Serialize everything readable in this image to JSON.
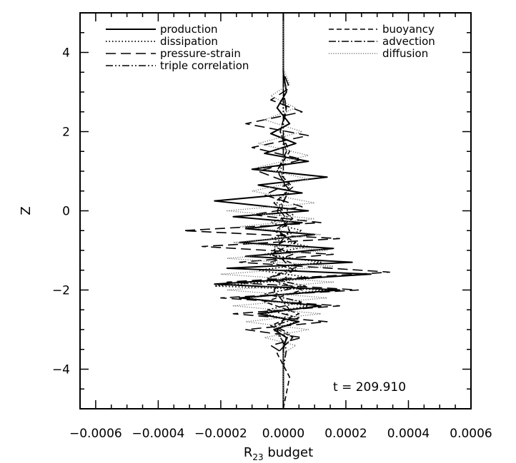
{
  "chart_data": {
    "type": "line",
    "title": "",
    "xlabel": "R",
    "xlabel_sub": "23",
    "xlabel_suffix": " budget",
    "ylabel": "Z",
    "xlim": [
      -0.00065,
      0.0006
    ],
    "ylim": [
      -5,
      5
    ],
    "x_ticks": [
      -0.0006,
      -0.0004,
      -0.0002,
      0.0,
      0.0002,
      0.0004,
      0.0006
    ],
    "x_tick_labels": [
      "−0.0006",
      "−0.0004",
      "−0.0002",
      "0.0000",
      "0.0002",
      "0.0004",
      "0.0006"
    ],
    "y_ticks": [
      -4,
      -2,
      0,
      2,
      4
    ],
    "y_tick_labels": [
      "−4",
      "−2",
      "0",
      "2",
      "4"
    ],
    "grid": false,
    "legend_placement": "top",
    "annotation": "t = 209.910",
    "series": [
      {
        "name": "production",
        "style": "solid",
        "color": "#000000",
        "points": [
          [
            0.0,
            -5.0
          ],
          [
            0.0,
            -3.5
          ],
          [
            1e-05,
            -3.2
          ],
          [
            -3e-05,
            -3.0
          ],
          [
            5e-05,
            -2.8
          ],
          [
            -8e-05,
            -2.6
          ],
          [
            0.00012,
            -2.4
          ],
          [
            -0.00014,
            -2.2
          ],
          [
            0.00018,
            -2.0
          ],
          [
            -0.00022,
            -1.85
          ],
          [
            0.00028,
            -1.6
          ],
          [
            -0.00018,
            -1.45
          ],
          [
            0.00022,
            -1.3
          ],
          [
            -0.00012,
            -1.15
          ],
          [
            0.00016,
            -0.95
          ],
          [
            -0.00014,
            -0.8
          ],
          [
            0.0001,
            -0.6
          ],
          [
            -0.00012,
            -0.45
          ],
          [
            6e-05,
            -0.3
          ],
          [
            -0.00016,
            -0.15
          ],
          [
            8e-05,
            0.0
          ],
          [
            -0.00022,
            0.25
          ],
          [
            6e-05,
            0.45
          ],
          [
            -8e-05,
            0.65
          ],
          [
            0.00014,
            0.85
          ],
          [
            -0.0001,
            1.05
          ],
          [
            8e-05,
            1.25
          ],
          [
            -6e-05,
            1.45
          ],
          [
            4e-05,
            1.7
          ],
          [
            -4e-05,
            1.95
          ],
          [
            2e-05,
            2.2
          ],
          [
            -2e-05,
            2.6
          ],
          [
            1e-05,
            3.0
          ],
          [
            0.0,
            3.5
          ],
          [
            0.0,
            5.0
          ]
        ]
      },
      {
        "name": "dissipation",
        "style": "dotted",
        "color": "#000000",
        "points": [
          [
            0.0,
            -5.0
          ],
          [
            0.0,
            -3.3
          ],
          [
            -3e-05,
            -3.0
          ],
          [
            4e-05,
            -2.8
          ],
          [
            -6e-05,
            -2.6
          ],
          [
            8e-05,
            -2.4
          ],
          [
            -0.00012,
            -2.2
          ],
          [
            0.00014,
            -2.0
          ],
          [
            -0.00022,
            -1.9
          ],
          [
            0.0001,
            -1.7
          ],
          [
            -8e-05,
            -1.5
          ],
          [
            0.00012,
            -1.3
          ],
          [
            -6e-05,
            -1.1
          ],
          [
            8e-05,
            -0.9
          ],
          [
            -4e-05,
            -0.7
          ],
          [
            6e-05,
            -0.5
          ],
          [
            -4e-05,
            -0.3
          ],
          [
            3e-05,
            -0.1
          ],
          [
            -2e-05,
            0.2
          ],
          [
            2e-05,
            0.6
          ],
          [
            -1e-05,
            1.0
          ],
          [
            1e-05,
            1.5
          ],
          [
            0.0,
            2.0
          ],
          [
            0.0,
            5.0
          ]
        ]
      },
      {
        "name": "pressure-strain",
        "style": "longdash",
        "color": "#000000",
        "points": [
          [
            0.0,
            -5.0
          ],
          [
            0.0,
            -3.6
          ],
          [
            -4e-05,
            -3.4
          ],
          [
            6e-05,
            -3.2
          ],
          [
            -0.00012,
            -3.0
          ],
          [
            0.00014,
            -2.8
          ],
          [
            -0.00016,
            -2.6
          ],
          [
            0.00018,
            -2.4
          ],
          [
            -0.0002,
            -2.2
          ],
          [
            0.00024,
            -2.0
          ],
          [
            -0.00018,
            -1.8
          ],
          [
            0.00034,
            -1.55
          ],
          [
            -0.00014,
            -1.3
          ],
          [
            0.00016,
            -1.1
          ],
          [
            -0.00026,
            -0.9
          ],
          [
            0.00018,
            -0.7
          ],
          [
            -0.00032,
            -0.5
          ],
          [
            0.00012,
            -0.3
          ],
          [
            -0.0001,
            -0.1
          ],
          [
            6e-05,
            0.1
          ],
          [
            -6e-05,
            0.4
          ],
          [
            2e-05,
            0.7
          ],
          [
            -8e-05,
            1.0
          ],
          [
            6e-05,
            1.3
          ],
          [
            -0.0001,
            1.6
          ],
          [
            8e-05,
            1.9
          ],
          [
            -0.00012,
            2.2
          ],
          [
            6e-05,
            2.5
          ],
          [
            -4e-05,
            2.8
          ],
          [
            2e-05,
            3.1
          ],
          [
            0.0,
            3.5
          ],
          [
            0.0,
            5.0
          ]
        ]
      },
      {
        "name": "triple correlation",
        "style": "dashdotdot",
        "color": "#000000",
        "points": [
          [
            0.0,
            -5.0
          ],
          [
            0.0,
            -3.4
          ],
          [
            2e-05,
            -3.1
          ],
          [
            -3e-05,
            -2.9
          ],
          [
            5e-05,
            -2.7
          ],
          [
            -5e-05,
            -2.5
          ],
          [
            6e-05,
            -2.3
          ],
          [
            -6e-05,
            -2.1
          ],
          [
            7e-05,
            -1.9
          ],
          [
            -5e-05,
            -1.7
          ],
          [
            4e-05,
            -1.5
          ],
          [
            -4e-05,
            -1.3
          ],
          [
            3e-05,
            -1.1
          ],
          [
            -3e-05,
            -0.9
          ],
          [
            2e-05,
            -0.7
          ],
          [
            -2e-05,
            -0.5
          ],
          [
            2e-05,
            -0.3
          ],
          [
            -1e-05,
            0.0
          ],
          [
            1e-05,
            0.4
          ],
          [
            0.0,
            0.8
          ],
          [
            0.0,
            5.0
          ]
        ]
      },
      {
        "name": "buoyancy",
        "style": "dashed",
        "color": "#000000",
        "points": [
          [
            0.0,
            -5.0
          ],
          [
            2e-05,
            -4.2
          ],
          [
            -2e-05,
            -3.6
          ],
          [
            3e-05,
            -3.2
          ],
          [
            -4e-05,
            -2.9
          ],
          [
            5e-05,
            -2.6
          ],
          [
            -6e-05,
            -2.3
          ],
          [
            6e-05,
            -2.0
          ],
          [
            -5e-05,
            -1.7
          ],
          [
            5e-05,
            -1.4
          ],
          [
            -4e-05,
            -1.1
          ],
          [
            4e-05,
            -0.8
          ],
          [
            -3e-05,
            -0.5
          ],
          [
            3e-05,
            -0.2
          ],
          [
            -3e-05,
            0.2
          ],
          [
            3e-05,
            0.6
          ],
          [
            -2e-05,
            1.0
          ],
          [
            2e-05,
            1.5
          ],
          [
            -1e-05,
            2.0
          ],
          [
            1e-05,
            2.6
          ],
          [
            0.0,
            3.0
          ],
          [
            0.0,
            5.0
          ]
        ]
      },
      {
        "name": "advection",
        "style": "dashdot",
        "color": "#000000",
        "points": [
          [
            0.0,
            -5.0
          ],
          [
            0.0,
            -4.0
          ],
          [
            1e-05,
            -3.5
          ],
          [
            -2e-05,
            -3.0
          ],
          [
            2e-05,
            -2.5
          ],
          [
            -3e-05,
            -2.0
          ],
          [
            3e-05,
            -1.5
          ],
          [
            -3e-05,
            -1.0
          ],
          [
            2e-05,
            -0.5
          ],
          [
            -2e-05,
            0.0
          ],
          [
            2e-05,
            0.5
          ],
          [
            -2e-05,
            1.0
          ],
          [
            1e-05,
            1.5
          ],
          [
            -1e-05,
            2.0
          ],
          [
            1e-05,
            2.5
          ],
          [
            0.0,
            3.0
          ],
          [
            0.0,
            5.0
          ]
        ]
      },
      {
        "name": "diffusion",
        "style": "finedot",
        "color": "#7a7a7a",
        "points": [
          [
            0.0,
            -5.0
          ],
          [
            0.0,
            -3.6
          ],
          [
            4e-05,
            -3.4
          ],
          [
            -6e-05,
            -3.2
          ],
          [
            8e-05,
            -3.0
          ],
          [
            -0.00012,
            -2.8
          ],
          [
            0.00012,
            -2.6
          ],
          [
            -0.00016,
            -2.4
          ],
          [
            0.00014,
            -2.2
          ],
          [
            -0.00018,
            -2.0
          ],
          [
            0.00016,
            -1.8
          ],
          [
            -0.0002,
            -1.6
          ],
          [
            0.00016,
            -1.4
          ],
          [
            -0.00018,
            -1.2
          ],
          [
            0.00014,
            -1.0
          ],
          [
            -0.00016,
            -0.8
          ],
          [
            0.00012,
            -0.6
          ],
          [
            -0.00014,
            -0.4
          ],
          [
            0.0001,
            -0.2
          ],
          [
            -0.00018,
            0.0
          ],
          [
            0.0001,
            0.2
          ],
          [
            -0.0001,
            0.5
          ],
          [
            8e-05,
            0.8
          ],
          [
            -8e-05,
            1.1
          ],
          [
            8e-05,
            1.4
          ],
          [
            -8e-05,
            1.7
          ],
          [
            6e-05,
            2.0
          ],
          [
            -6e-05,
            2.3
          ],
          [
            4e-05,
            2.6
          ],
          [
            -4e-05,
            2.9
          ],
          [
            2e-05,
            3.2
          ],
          [
            0.0,
            3.6
          ],
          [
            0.0,
            5.0
          ]
        ]
      }
    ]
  }
}
